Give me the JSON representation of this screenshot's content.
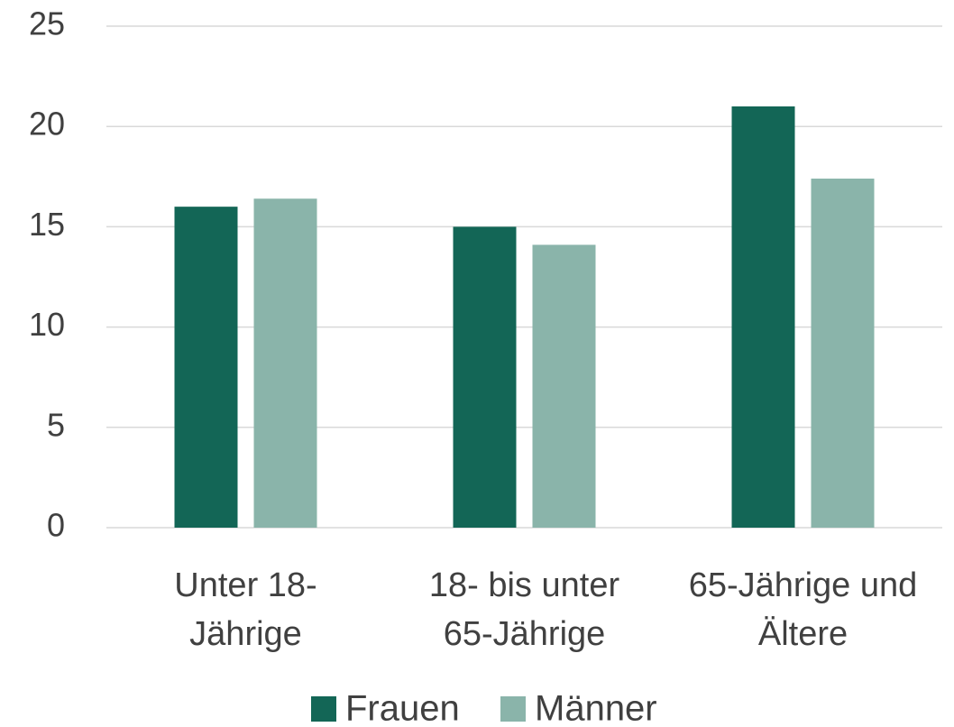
{
  "chart_data": {
    "type": "bar",
    "categories": [
      "Unter 18-\nJährige",
      "18- bis unter\n65-Jährige",
      "65-Jährige und\nÄltere"
    ],
    "series": [
      {
        "name": "Frauen",
        "color": "#136656",
        "values": [
          16,
          15,
          21
        ]
      },
      {
        "name": "Männer",
        "color": "#8ab4aa",
        "values": [
          16.4,
          14.1,
          17.4
        ]
      }
    ],
    "ylim": [
      0,
      25
    ],
    "yticks": [
      0,
      5,
      10,
      15,
      20,
      25
    ],
    "grid": true,
    "legend": "bottom"
  }
}
